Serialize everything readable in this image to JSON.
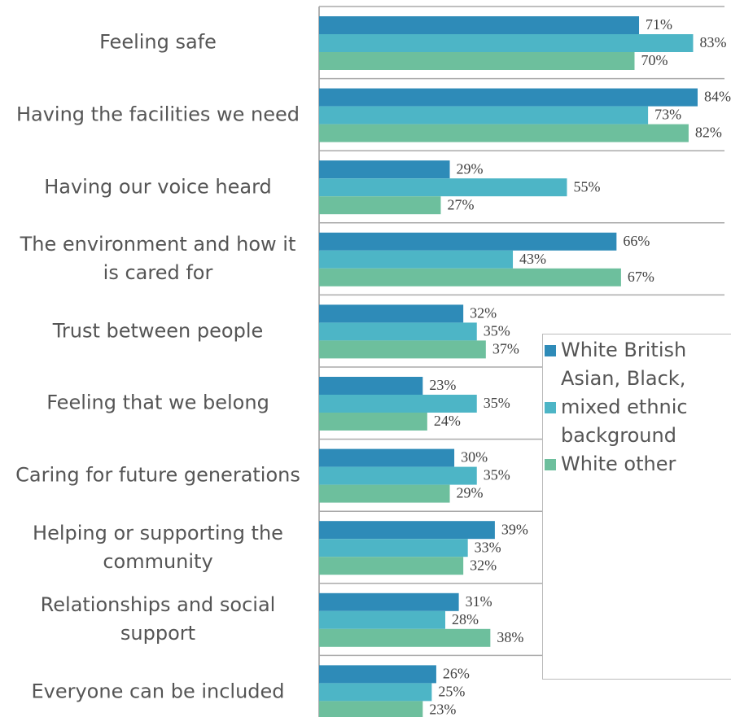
{
  "chart_data": {
    "type": "bar",
    "orientation": "horizontal",
    "categories": [
      "Feeling safe",
      "Having the facilities we need",
      "Having our voice heard",
      "The environment and how it is cared for",
      "Trust between people",
      "Feeling that we belong",
      "Caring for future generations",
      "Helping or supporting the community",
      "Relationships and social support",
      "Everyone can be included"
    ],
    "series": [
      {
        "name": "White British",
        "color": "#2e8bb8",
        "values": [
          71,
          84,
          29,
          66,
          32,
          23,
          30,
          39,
          31,
          26
        ],
        "value_labels": [
          "71%",
          "84%",
          "29%",
          "66%",
          "32%",
          "23%",
          "30%",
          "39%",
          "31%",
          "26%"
        ]
      },
      {
        "name": "Asian, Black, mixed ethnic background",
        "color": "#4db5c6",
        "values": [
          83,
          73,
          55,
          43,
          35,
          35,
          35,
          33,
          28,
          25
        ],
        "value_labels": [
          "83%",
          "73%",
          "55%",
          "43%",
          "35%",
          "35%",
          "35%",
          "33%",
          "28%",
          "25%"
        ]
      },
      {
        "name": "White other",
        "color": "#6dbf9d",
        "values": [
          70,
          82,
          27,
          67,
          37,
          24,
          29,
          32,
          38,
          23
        ],
        "value_labels": [
          "70%",
          "82%",
          "27%",
          "67%",
          "37%",
          "24%",
          "29%",
          "32%",
          "38%",
          "23%"
        ]
      }
    ],
    "legend": "right"
  }
}
